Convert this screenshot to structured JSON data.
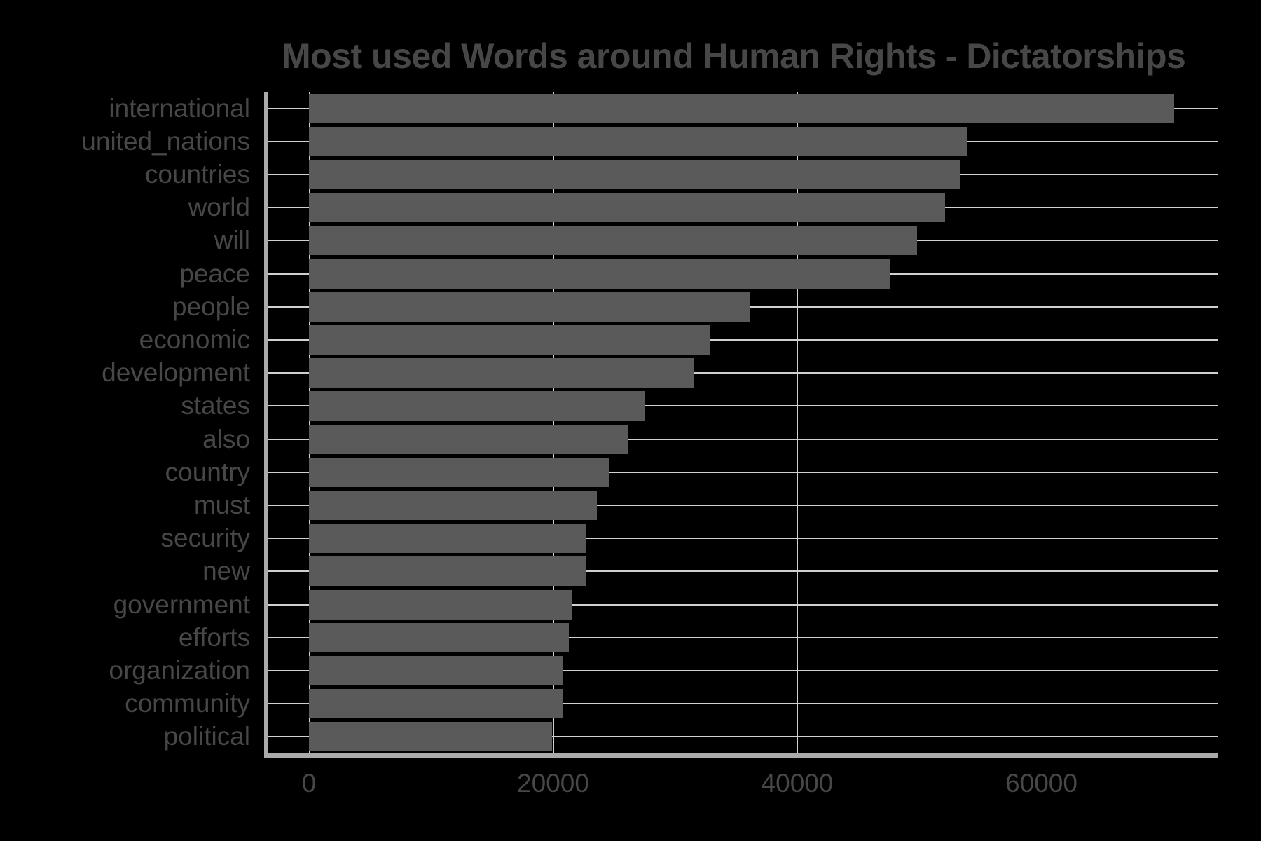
{
  "chart_data": {
    "type": "bar",
    "orientation": "horizontal",
    "title": "Most used Words around Human Rights - Dictatorships",
    "xlabel": "",
    "ylabel": "",
    "xlim": [
      0,
      74500
    ],
    "x_ticks": [
      0,
      20000,
      40000,
      60000
    ],
    "x_tick_labels": [
      "0",
      "20000",
      "40000",
      "60000"
    ],
    "grid": true,
    "legend": null,
    "categories": [
      "international",
      "united_nations",
      "countries",
      "world",
      "will",
      "peace",
      "people",
      "economic",
      "development",
      "states",
      "also",
      "country",
      "must",
      "security",
      "new",
      "government",
      "efforts",
      "organization",
      "community",
      "political"
    ],
    "values": [
      70900,
      53900,
      53400,
      52100,
      49800,
      47600,
      36100,
      32800,
      31500,
      27500,
      26100,
      24600,
      23600,
      22700,
      22700,
      21500,
      21300,
      20800,
      20800,
      19900
    ],
    "colors": {
      "background": "#000000",
      "bar": "#5a5a5a",
      "grid": "#d0d0d0",
      "axis": "#aaaaaa",
      "text": "#474747"
    }
  }
}
